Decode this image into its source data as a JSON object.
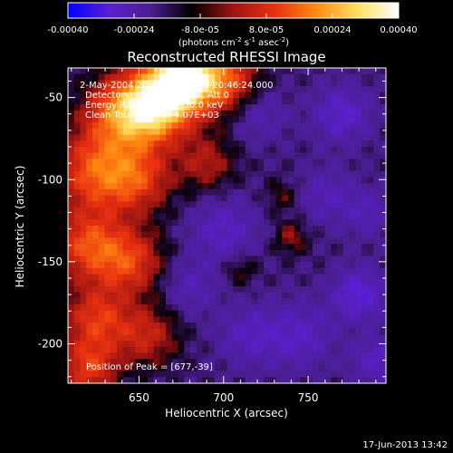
{
  "chart_data": {
    "type": "heatmap",
    "title": "Reconstructed RHESSI Image",
    "xlabel": "Heliocentric X (arcsec)",
    "ylabel": "Heliocentric Y (arcsec)",
    "xlim": [
      608,
      796
    ],
    "ylim": [
      -224,
      -32
    ],
    "x_ticks": [
      650,
      700,
      750
    ],
    "y_ticks": [
      -50,
      -100,
      -150,
      -200
    ],
    "colorbar": {
      "range": [
        -0.0004,
        0.0004
      ],
      "tick_values": [
        -0.0004,
        -0.00024,
        -8e-05,
        8e-05,
        0.00024,
        0.0004
      ],
      "tick_labels": [
        "-0.00040",
        "-0.00024",
        "-8.0e-05",
        "8.0e-05",
        "0.00024",
        "0.00040"
      ],
      "unit_text": "(photons cm",
      "unit_exp1": "-2",
      "unit_mid": " s",
      "unit_exp2": "-1",
      "unit_mid2": " asec",
      "unit_exp3": "-2",
      "unit_end": ")",
      "colors": [
        "#0000ff",
        "#5a1fcf",
        "#4a1e8e",
        "#000000",
        "#a01414",
        "#e83010",
        "#ff8a10",
        "#ffe060",
        "#ffffff"
      ]
    },
    "info_lines": [
      "2-May-2004 20:46:12.000 to 20:46:24.000",
      "Detectors: 4F 5F 6F 7F 8F, Att 0",
      "Energy Range: 25.0 - 50.0 keV",
      "Clean    Total counts: 4.07E+03"
    ],
    "peak_text": "Position of Peak = [677,-39]",
    "peak": [
      677,
      -39
    ],
    "sources": [
      {
        "x": 676,
        "y": -38,
        "amp": 1.0,
        "s": 13
      },
      {
        "x": 660,
        "y": -55,
        "amp": 0.85,
        "s": 15
      },
      {
        "x": 640,
        "y": -60,
        "amp": 0.55,
        "s": 16
      },
      {
        "x": 700,
        "y": -40,
        "amp": 0.55,
        "s": 14
      },
      {
        "x": 625,
        "y": -95,
        "amp": 0.55,
        "s": 17
      },
      {
        "x": 650,
        "y": -100,
        "amp": 0.4,
        "s": 14
      },
      {
        "x": 620,
        "y": -140,
        "amp": 0.5,
        "s": 15
      },
      {
        "x": 645,
        "y": -150,
        "amp": 0.45,
        "s": 14
      },
      {
        "x": 625,
        "y": -185,
        "amp": 0.45,
        "s": 14
      },
      {
        "x": 655,
        "y": -195,
        "amp": 0.35,
        "s": 13
      },
      {
        "x": 620,
        "y": -215,
        "amp": 0.45,
        "s": 12
      },
      {
        "x": 690,
        "y": -90,
        "amp": 0.3,
        "s": 12
      },
      {
        "x": 740,
        "y": -135,
        "amp": 0.25,
        "s": 7
      },
      {
        "x": 735,
        "y": -110,
        "amp": 0.18,
        "s": 7
      },
      {
        "x": 710,
        "y": -155,
        "amp": 0.18,
        "s": 7
      },
      {
        "x": 770,
        "y": -60,
        "amp": -0.3,
        "s": 12
      },
      {
        "x": 780,
        "y": -170,
        "amp": -0.35,
        "s": 11
      },
      {
        "x": 745,
        "y": -195,
        "amp": -0.25,
        "s": 14
      },
      {
        "x": 715,
        "y": -195,
        "amp": -0.22,
        "s": 13
      },
      {
        "x": 700,
        "y": -130,
        "amp": -0.25,
        "s": 14
      },
      {
        "x": 760,
        "y": -110,
        "amp": -0.2,
        "s": 12
      },
      {
        "x": 785,
        "y": -120,
        "amp": -0.2,
        "s": 10
      },
      {
        "x": 720,
        "y": -60,
        "amp": -0.2,
        "s": 12
      },
      {
        "x": 680,
        "y": -165,
        "amp": -0.2,
        "s": 12
      },
      {
        "x": 790,
        "y": -210,
        "amp": -0.25,
        "s": 10
      }
    ]
  },
  "footer": {
    "timestamp": "17-Jun-2013 13:42"
  }
}
